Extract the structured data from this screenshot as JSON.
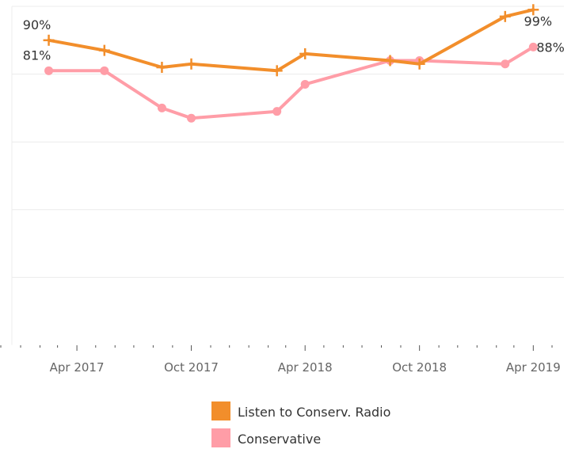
{
  "chart_data": {
    "type": "line",
    "title": "",
    "xlabel": "",
    "ylabel": "",
    "x_ticks": [
      "Apr 2017",
      "Oct 2017",
      "Apr 2018",
      "Oct 2018",
      "Apr 2019"
    ],
    "x_tick_dates": [
      "2017-04-01",
      "2017-10-01",
      "2018-04-01",
      "2018-10-01",
      "2019-04-01"
    ],
    "xlim": [
      "2016-12-18",
      "2019-05-20"
    ],
    "ylim": [
      0,
      100
    ],
    "grid": true,
    "legend_position": "bottom-center",
    "series": [
      {
        "name": "Listen to Conserv. Radio",
        "color": "#f28e2b",
        "marker": "plus",
        "points": [
          {
            "x": "2017-02-15",
            "y": 90
          },
          {
            "x": "2017-05-15",
            "y": 87
          },
          {
            "x": "2017-08-15",
            "y": 82
          },
          {
            "x": "2017-10-01",
            "y": 83
          },
          {
            "x": "2018-02-15",
            "y": 81
          },
          {
            "x": "2018-04-01",
            "y": 86
          },
          {
            "x": "2018-08-15",
            "y": 84
          },
          {
            "x": "2018-10-01",
            "y": 83
          },
          {
            "x": "2019-02-15",
            "y": 97
          },
          {
            "x": "2019-04-01",
            "y": 99
          }
        ],
        "labels": [
          {
            "index": 0,
            "text": "90%",
            "position": "above"
          },
          {
            "index": 9,
            "text": "99%",
            "position": "below"
          }
        ]
      },
      {
        "name": "Conservative",
        "color": "#ff9da7",
        "marker": "circle",
        "points": [
          {
            "x": "2017-02-15",
            "y": 81
          },
          {
            "x": "2017-05-15",
            "y": 81
          },
          {
            "x": "2017-08-15",
            "y": 70
          },
          {
            "x": "2017-10-01",
            "y": 67
          },
          {
            "x": "2018-02-15",
            "y": 69
          },
          {
            "x": "2018-04-01",
            "y": 77
          },
          {
            "x": "2018-08-15",
            "y": 84
          },
          {
            "x": "2018-10-01",
            "y": 84
          },
          {
            "x": "2019-02-15",
            "y": 83
          },
          {
            "x": "2019-04-01",
            "y": 88
          }
        ],
        "labels": [
          {
            "index": 0,
            "text": "81%",
            "position": "above"
          },
          {
            "index": 9,
            "text": "88%",
            "position": "right"
          }
        ]
      }
    ]
  },
  "legend": {
    "items": [
      {
        "label": "Listen to Conserv. Radio",
        "color": "#f28e2b"
      },
      {
        "label": "Conservative",
        "color": "#ff9da7"
      }
    ]
  }
}
